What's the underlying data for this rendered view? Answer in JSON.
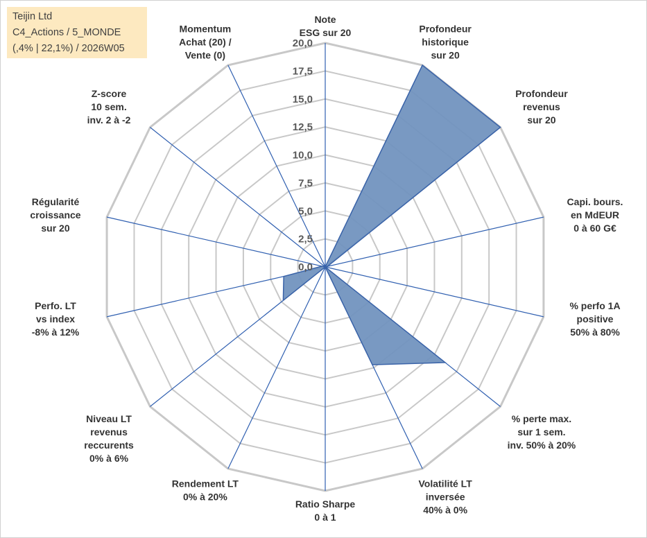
{
  "info": {
    "line1": "Teijin Ltd",
    "line2": "C4_Actions / 5_MONDE",
    "line3": "(,4% | 22,1%) / 2026W05"
  },
  "colors": {
    "fill": "#7294bf",
    "stroke": "#3a63a8",
    "grid": "#c8c8c8",
    "spoke": "#2f5fb0",
    "info_bg": "#fde9c0"
  },
  "chart_data": {
    "type": "radar",
    "rmin": 0,
    "rmax": 20,
    "tick_step": 2.5,
    "tick_labels": [
      "0,0",
      "2,5",
      "5,0",
      "7,5",
      "10,0",
      "12,5",
      "15,0",
      "17,5",
      "20,0"
    ],
    "axes": [
      {
        "label": [
          "Note",
          "ESG sur 20"
        ],
        "value": 0
      },
      {
        "label": [
          "Profondeur",
          "historique",
          "sur 20"
        ],
        "value": 20
      },
      {
        "label": [
          "Profondeur",
          "revenus",
          "sur 20"
        ],
        "value": 20
      },
      {
        "label": [
          "Capi. bours.",
          "en MdEUR",
          "0 à 60 G€"
        ],
        "value": 0.2
      },
      {
        "label": [
          "% perfo 1A",
          "positive",
          "50% à 80%"
        ],
        "value": 0
      },
      {
        "label": [
          "% perte max.",
          "sur 1 sem.",
          "inv. 50% à 20%"
        ],
        "value": 13.7
      },
      {
        "label": [
          "Volatilité LT",
          "inversée",
          "40% à 0%"
        ],
        "value": 9.7
      },
      {
        "label": [
          "Ratio Sharpe",
          "0 à 1"
        ],
        "value": 0
      },
      {
        "label": [
          "Rendement LT",
          "0% à 20%"
        ],
        "value": 0
      },
      {
        "label": [
          "Niveau LT",
          "revenus",
          "reccurents",
          "0% à 6%"
        ],
        "value": 4.8
      },
      {
        "label": [
          "Perfo. LT",
          "vs index",
          "-8% à 12%"
        ],
        "value": 3.8
      },
      {
        "label": [
          "Régularité",
          "croissance",
          "sur 20"
        ],
        "value": 0.3
      },
      {
        "label": [
          "Z-score",
          "10 sem.",
          "inv. 2 à -2"
        ],
        "value": 0
      },
      {
        "label": [
          "Momentum",
          "Achat (20) /",
          "Vente (0)"
        ],
        "value": 0
      }
    ]
  }
}
